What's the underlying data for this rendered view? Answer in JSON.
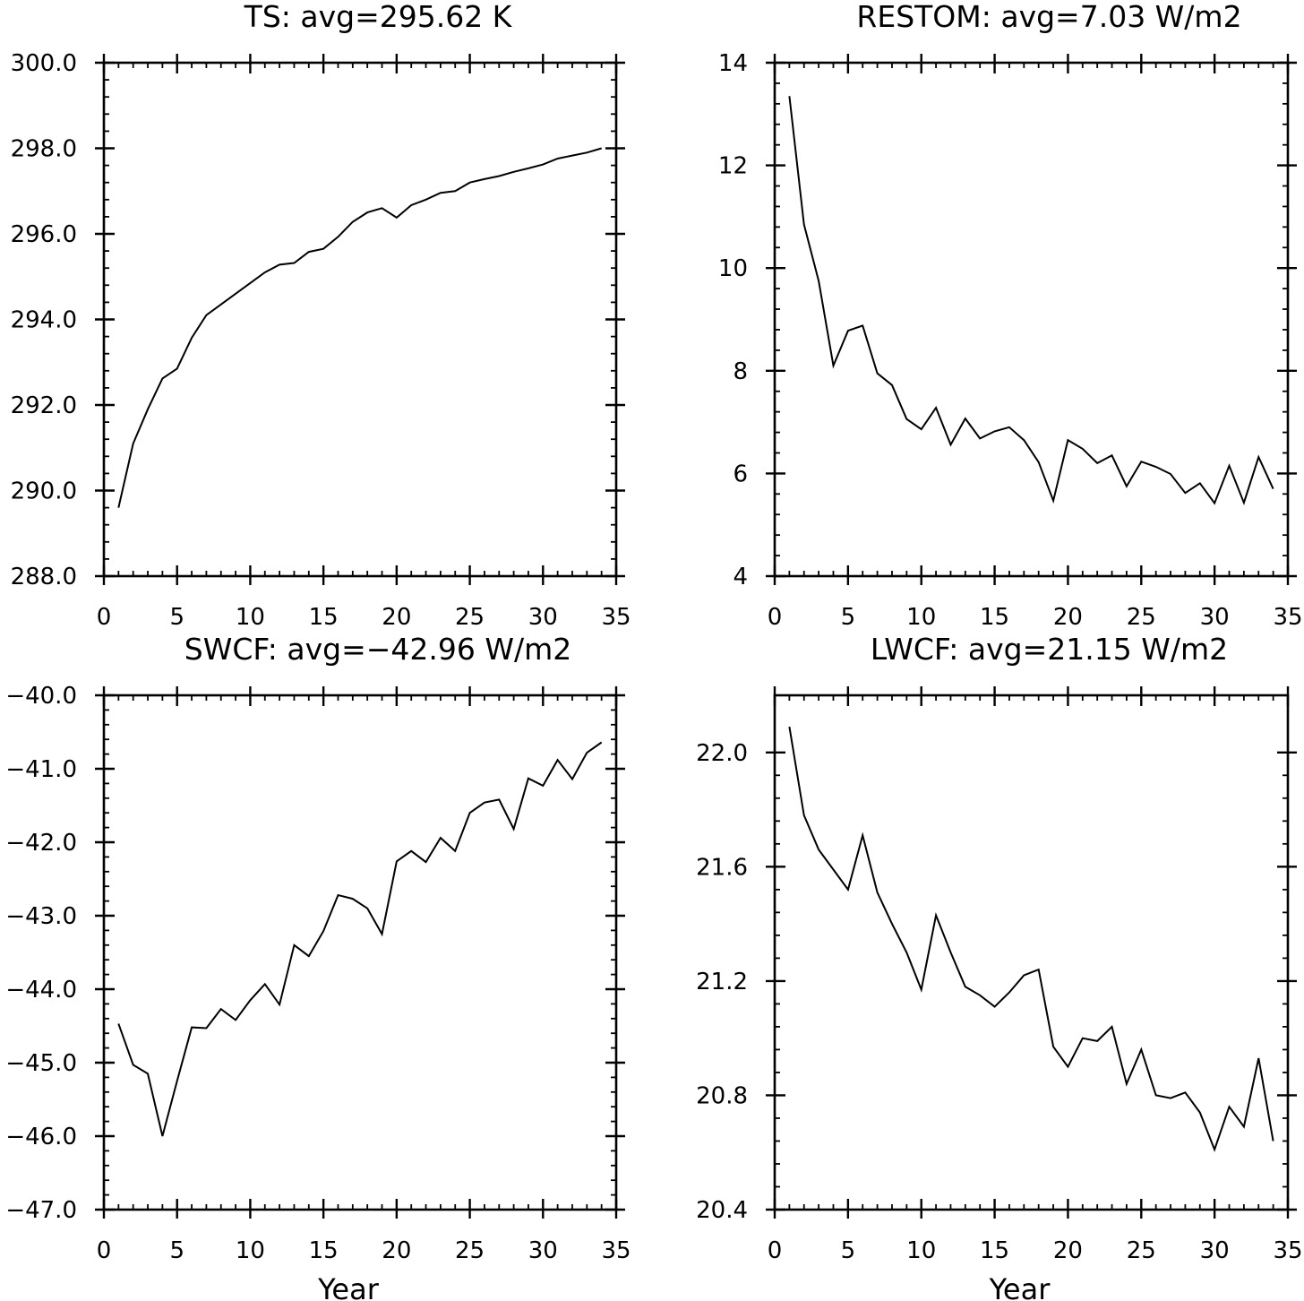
{
  "chart_data": [
    {
      "type": "line",
      "title": "TS: avg=295.62 K",
      "xlabel": "",
      "ylabel": "",
      "xlim": [
        0,
        35
      ],
      "ylim": [
        288,
        300
      ],
      "xticks": [
        0,
        5,
        10,
        15,
        20,
        25,
        30,
        35
      ],
      "xtick_labels": [
        "0",
        "5",
        "10",
        "15",
        "20",
        "25",
        "30",
        "35"
      ],
      "yticks": [
        288,
        290,
        292,
        294,
        296,
        298,
        300
      ],
      "ytick_labels": [
        "288.0",
        "290.0",
        "292.0",
        "294.0",
        "296.0",
        "298.0",
        "300.0"
      ],
      "x": [
        1,
        2,
        3,
        4,
        5,
        6,
        7,
        8,
        9,
        10,
        11,
        12,
        13,
        14,
        15,
        16,
        17,
        18,
        19,
        20,
        21,
        22,
        23,
        24,
        25,
        26,
        27,
        28,
        29,
        30,
        31,
        32,
        33,
        34
      ],
      "y": [
        289.6,
        291.1,
        291.9,
        292.62,
        292.85,
        293.57,
        294.1,
        294.35,
        294.6,
        294.85,
        295.1,
        295.28,
        295.32,
        295.58,
        295.65,
        295.93,
        296.28,
        296.5,
        296.6,
        296.38,
        296.67,
        296.8,
        296.96,
        297.0,
        297.2,
        297.28,
        297.35,
        297.45,
        297.53,
        297.62,
        297.76,
        297.83,
        297.9,
        298.0
      ],
      "grid": false,
      "legend": "none"
    },
    {
      "type": "line",
      "title": "RESTOM: avg=7.03 W/m2",
      "xlabel": "",
      "ylabel": "",
      "xlim": [
        0,
        35
      ],
      "ylim": [
        4,
        14
      ],
      "xticks": [
        0,
        5,
        10,
        15,
        20,
        25,
        30,
        35
      ],
      "xtick_labels": [
        "0",
        "5",
        "10",
        "15",
        "20",
        "25",
        "30",
        "35"
      ],
      "yticks": [
        4,
        6,
        8,
        10,
        12,
        14
      ],
      "ytick_labels": [
        "4",
        "6",
        "8",
        "10",
        "12",
        "14"
      ],
      "x": [
        1,
        2,
        3,
        4,
        5,
        6,
        7,
        8,
        9,
        10,
        11,
        12,
        13,
        14,
        15,
        16,
        17,
        18,
        19,
        20,
        21,
        22,
        23,
        24,
        25,
        26,
        27,
        28,
        29,
        30,
        31,
        32,
        33,
        34
      ],
      "y": [
        13.35,
        10.85,
        9.75,
        8.1,
        8.78,
        8.88,
        7.95,
        7.72,
        7.06,
        6.86,
        7.28,
        6.56,
        7.07,
        6.68,
        6.82,
        6.9,
        6.65,
        6.22,
        5.47,
        6.65,
        6.48,
        6.2,
        6.35,
        5.75,
        6.23,
        6.13,
        5.99,
        5.62,
        5.81,
        5.42,
        6.15,
        5.43,
        6.32,
        5.7
      ],
      "grid": false,
      "legend": "none"
    },
    {
      "type": "line",
      "title": "SWCF: avg=−42.96 W/m2",
      "xlabel": "Year",
      "ylabel": "",
      "xlim": [
        0,
        35
      ],
      "ylim": [
        -47,
        -40
      ],
      "xticks": [
        0,
        5,
        10,
        15,
        20,
        25,
        30,
        35
      ],
      "xtick_labels": [
        "0",
        "5",
        "10",
        "15",
        "20",
        "25",
        "30",
        "35"
      ],
      "yticks": [
        -47,
        -46,
        -45,
        -44,
        -43,
        -42,
        -41,
        -40
      ],
      "ytick_labels": [
        "−47.0",
        "−46.0",
        "−45.0",
        "−44.0",
        "−43.0",
        "−42.0",
        "−41.0",
        "−40.0"
      ],
      "x": [
        1,
        2,
        3,
        4,
        5,
        6,
        7,
        8,
        9,
        10,
        11,
        12,
        13,
        14,
        15,
        16,
        17,
        18,
        19,
        20,
        21,
        22,
        23,
        24,
        25,
        26,
        27,
        28,
        29,
        30,
        31,
        32,
        33,
        34
      ],
      "y": [
        -44.47,
        -45.03,
        -45.15,
        -46.0,
        -45.25,
        -44.52,
        -44.53,
        -44.27,
        -44.42,
        -44.15,
        -43.93,
        -44.21,
        -43.4,
        -43.55,
        -43.21,
        -42.72,
        -42.77,
        -42.9,
        -43.25,
        -42.26,
        -42.12,
        -42.27,
        -41.94,
        -42.12,
        -41.6,
        -41.46,
        -41.42,
        -41.82,
        -41.13,
        -41.23,
        -40.88,
        -41.14,
        -40.78,
        -40.64
      ],
      "grid": false,
      "legend": "none"
    },
    {
      "type": "line",
      "title": "LWCF: avg=21.15 W/m2",
      "xlabel": "Year",
      "ylabel": "",
      "xlim": [
        0,
        35
      ],
      "ylim": [
        20.4,
        22.2
      ],
      "xticks": [
        0,
        5,
        10,
        15,
        20,
        25,
        30,
        35
      ],
      "xtick_labels": [
        "0",
        "5",
        "10",
        "15",
        "20",
        "25",
        "30",
        "35"
      ],
      "yticks": [
        20.4,
        20.8,
        21.2,
        21.6,
        22.0
      ],
      "ytick_labels": [
        "20.4",
        "20.8",
        "21.2",
        "21.6",
        "22.0"
      ],
      "x": [
        1,
        2,
        3,
        4,
        5,
        6,
        7,
        8,
        9,
        10,
        11,
        12,
        13,
        14,
        15,
        16,
        17,
        18,
        19,
        20,
        21,
        22,
        23,
        24,
        25,
        26,
        27,
        28,
        29,
        30,
        31,
        32,
        33,
        34
      ],
      "y": [
        22.09,
        21.78,
        21.66,
        21.59,
        21.52,
        21.71,
        21.51,
        21.4,
        21.3,
        21.17,
        21.43,
        21.3,
        21.18,
        21.15,
        21.11,
        21.16,
        21.22,
        21.24,
        20.97,
        20.9,
        21.0,
        20.99,
        21.04,
        20.84,
        20.96,
        20.8,
        20.79,
        20.81,
        20.74,
        20.61,
        20.76,
        20.69,
        20.93,
        20.64
      ],
      "grid": false,
      "legend": "none"
    }
  ]
}
